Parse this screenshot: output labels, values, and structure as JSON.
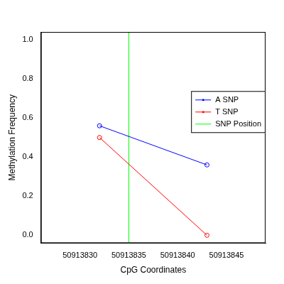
{
  "chart_data": {
    "type": "line",
    "xlabel": "CpG Coordinates",
    "ylabel": "Methylation Frequency",
    "x": [
      50913832,
      50913843
    ],
    "series": [
      {
        "name": "A SNP",
        "color": "#0000ff",
        "marker": "circle",
        "values": [
          0.56,
          0.36
        ]
      },
      {
        "name": "T SNP",
        "color": "#ff0000",
        "marker": "circle",
        "values": [
          0.5,
          0.0
        ]
      }
    ],
    "snp_position": {
      "name": "SNP Position",
      "color": "#00ff00",
      "x": 50913835
    },
    "xlim": [
      50913826,
      50913849
    ],
    "xticks": [
      50913830,
      50913835,
      50913840,
      50913845
    ],
    "ylim": [
      -0.04,
      1.04
    ],
    "yticks": [
      {
        "value": 0,
        "label": "0.0"
      },
      0.2,
      0.4,
      0.6,
      0.8,
      {
        "value": 1,
        "label": "1.0"
      }
    ],
    "legend": "right",
    "grid": false
  }
}
